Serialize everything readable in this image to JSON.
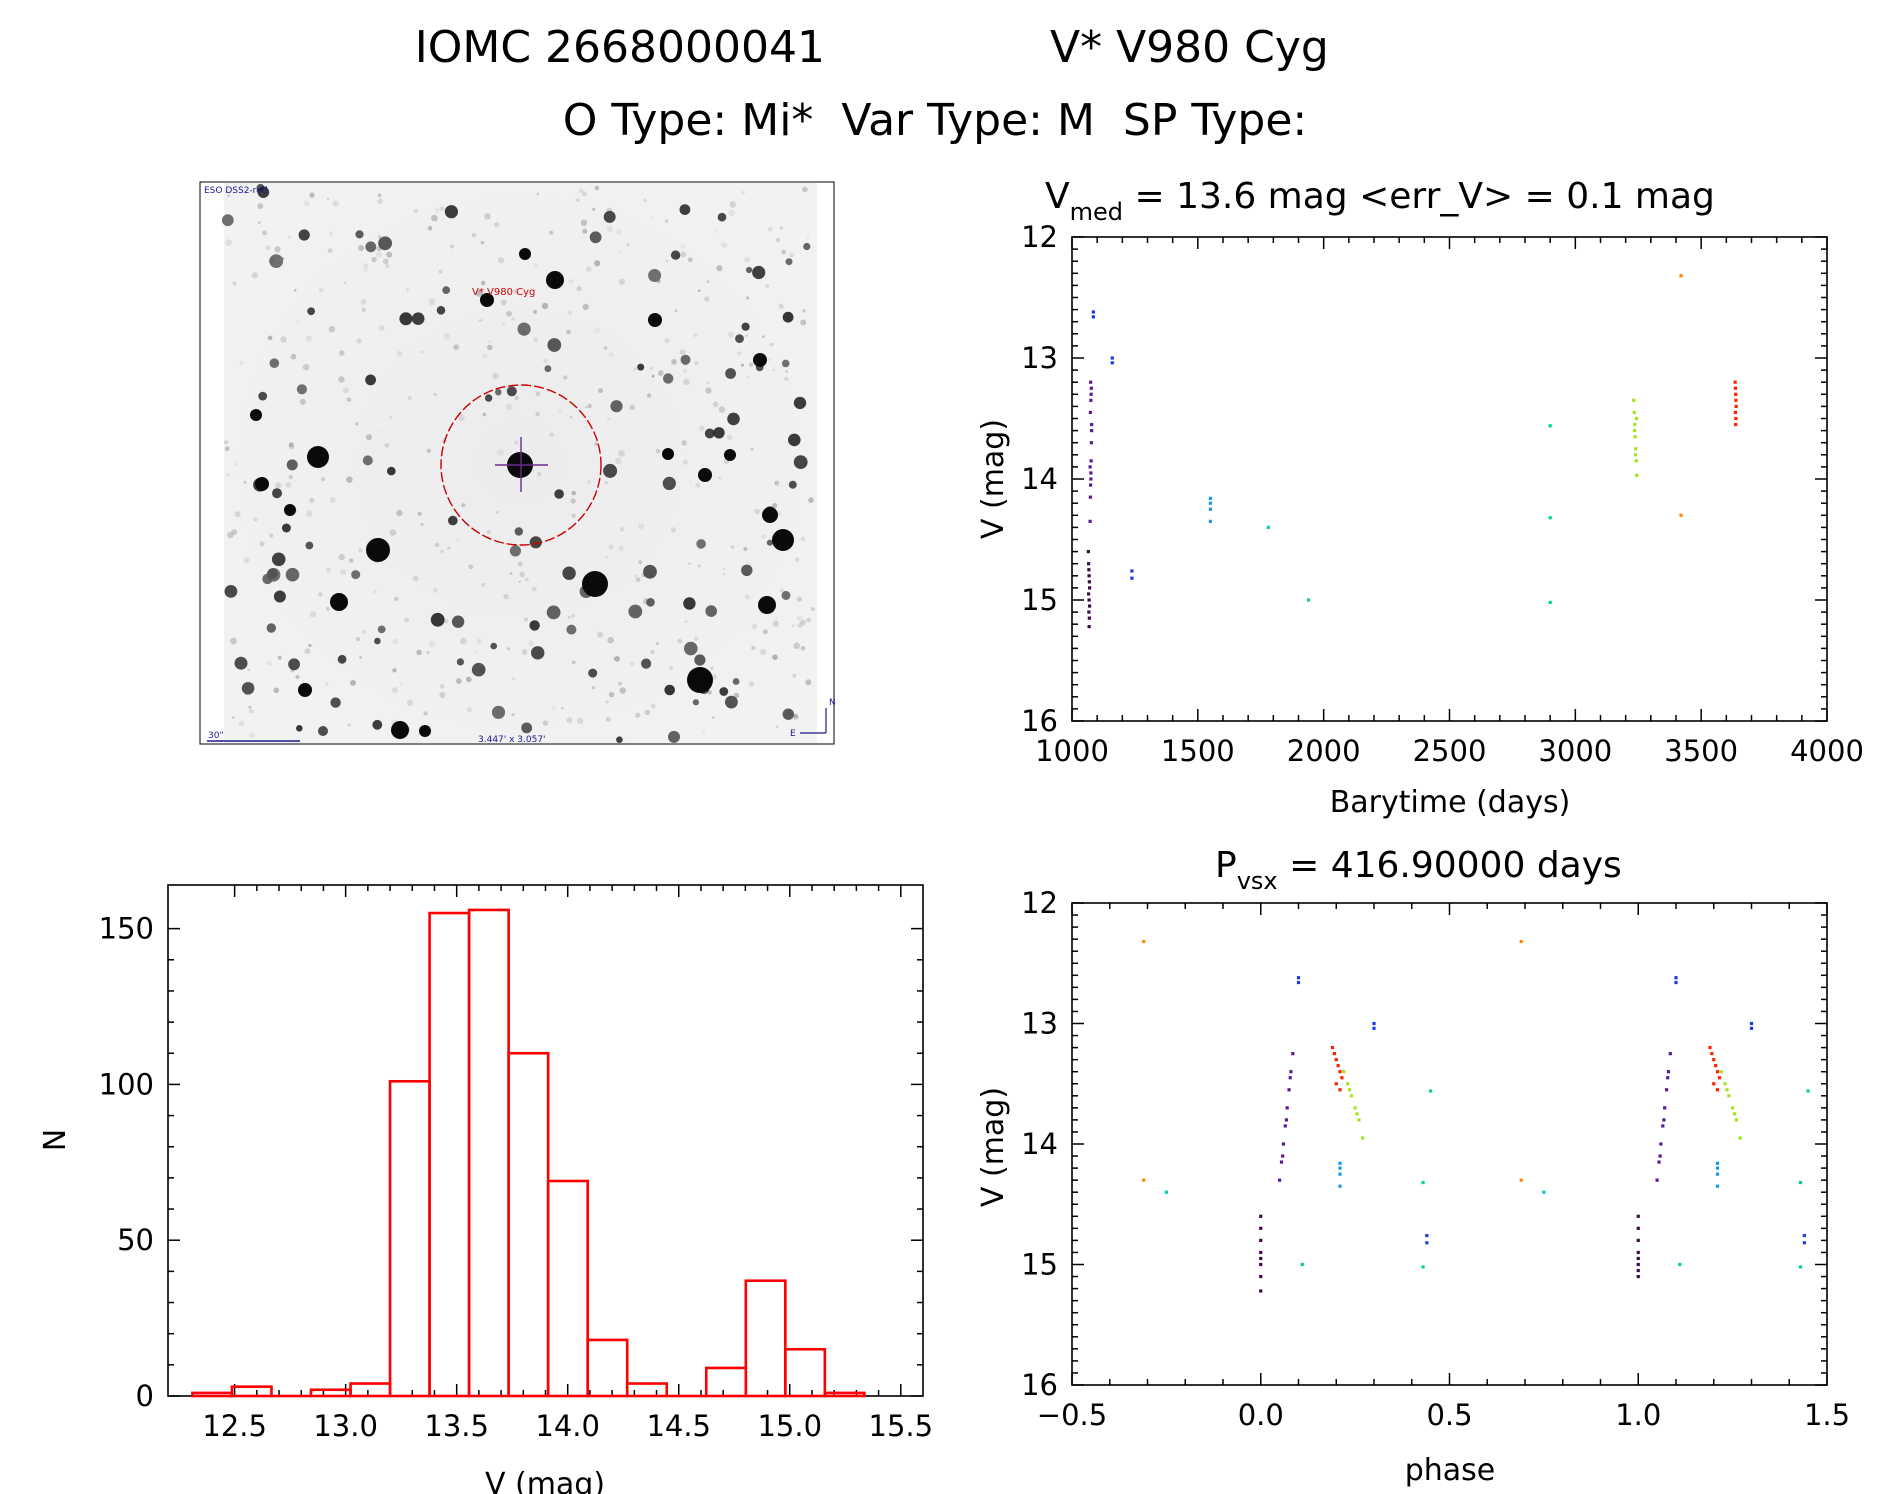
{
  "header": {
    "line1_id": "IOMC 2668000041",
    "line1_name": "V* V980 Cyg",
    "line2": "O Type: Mi*  Var Type: M  SP Type:"
  },
  "finder": {
    "survey_label": "ESO DSS2-red",
    "target_label": "V* V980 Cyg",
    "scale_label": "30\"",
    "fov_label": "3.447' x 3.057'",
    "north_label": "N",
    "east_label": "E"
  },
  "colors": {
    "histogram": "#ff0000",
    "finder_marker": "#cc0000",
    "finder_text": "#1a1a8c"
  },
  "chart_data": [
    {
      "id": "lightcurve",
      "type": "scatter",
      "title_main": "V",
      "title_sub": "med",
      "title_rest": " = 13.6 mag <err_V> = 0.1 mag",
      "xlabel": "Barytime (days)",
      "ylabel": "V (mag)",
      "xlim": [
        1000,
        4000
      ],
      "ylim": [
        16,
        12
      ],
      "x_ticks": [
        "1000",
        "1500",
        "2000",
        "2500",
        "3000",
        "3500",
        "4000"
      ],
      "y_ticks": [
        "12",
        "13",
        "14",
        "15",
        "16"
      ],
      "series": [
        {
          "name": "epoch1-dark",
          "color": "#3d0a4a",
          "x": [
            1065,
            1066,
            1067,
            1068,
            1069,
            1070,
            1066,
            1068,
            1070,
            1067,
            1069,
            1068
          ],
          "y": [
            14.6,
            14.7,
            14.75,
            14.8,
            14.85,
            14.9,
            14.95,
            15.0,
            15.05,
            15.1,
            15.15,
            15.22
          ]
        },
        {
          "name": "epoch1-purple",
          "color": "#5a1a99",
          "x": [
            1072,
            1073,
            1074,
            1075,
            1076,
            1077,
            1078,
            1073,
            1075,
            1077,
            1074,
            1076,
            1072,
            1078,
            1075
          ],
          "y": [
            14.35,
            14.15,
            14.05,
            13.95,
            13.85,
            13.7,
            13.55,
            13.45,
            13.35,
            13.25,
            13.2,
            13.3,
            13.9,
            13.6,
            14.0
          ]
        },
        {
          "name": "blue",
          "color": "#1a3ae6",
          "x": [
            1085,
            1085,
            1160,
            1160,
            1238,
            1238
          ],
          "y": [
            12.62,
            12.66,
            13.0,
            13.04,
            14.76,
            14.82
          ]
        },
        {
          "name": "cyan-blue",
          "color": "#1a99e6",
          "x": [
            1550,
            1550,
            1550,
            1550
          ],
          "y": [
            14.16,
            14.2,
            14.25,
            14.35
          ]
        },
        {
          "name": "cyan",
          "color": "#00ccbb",
          "x": [
            1780
          ],
          "y": [
            14.4
          ]
        },
        {
          "name": "teal",
          "color": "#00d48a",
          "x": [
            1940,
            2900,
            2900,
            2900
          ],
          "y": [
            15.0,
            13.56,
            14.32,
            15.02
          ]
        },
        {
          "name": "green-yellow",
          "color": "#a0e61a",
          "x": [
            3232,
            3234,
            3236,
            3238,
            3240,
            3242,
            3244,
            3235,
            3239,
            3243
          ],
          "y": [
            13.35,
            13.45,
            13.55,
            13.65,
            13.75,
            13.85,
            13.97,
            13.6,
            13.8,
            13.5
          ]
        },
        {
          "name": "orange",
          "color": "#ff8800",
          "x": [
            3420,
            3420
          ],
          "y": [
            12.32,
            14.3
          ]
        },
        {
          "name": "red",
          "color": "#ff2200",
          "x": [
            3635,
            3636,
            3637,
            3638,
            3639,
            3636,
            3638,
            3637
          ],
          "y": [
            13.2,
            13.25,
            13.3,
            13.35,
            13.4,
            13.45,
            13.5,
            13.55
          ]
        }
      ]
    },
    {
      "id": "histogram",
      "type": "bar",
      "xlabel": "V (mag)",
      "ylabel": "N",
      "xlim": [
        12.2,
        15.6
      ],
      "ylim": [
        0,
        164
      ],
      "x_ticks": [
        "12.5",
        "13.0",
        "13.5",
        "14.0",
        "14.5",
        "15.0",
        "15.5"
      ],
      "y_ticks": [
        "0",
        "50",
        "100",
        "150"
      ],
      "bin_width": 0.178,
      "bin_left_edges": [
        12.31,
        12.488,
        12.666,
        12.844,
        13.022,
        13.2,
        13.378,
        13.556,
        13.734,
        13.912,
        14.09,
        14.268,
        14.446,
        14.624,
        14.802,
        14.98,
        15.158
      ],
      "values": [
        1,
        3,
        0,
        2,
        4,
        101,
        155,
        156,
        110,
        69,
        18,
        4,
        0,
        9,
        37,
        15,
        1
      ]
    },
    {
      "id": "phased",
      "type": "scatter",
      "title_main": "P",
      "title_sub": "vsx",
      "title_rest": " = 416.90000 days",
      "xlabel": "phase",
      "ylabel": "V (mag)",
      "xlim": [
        -0.5,
        1.5
      ],
      "ylim": [
        16,
        12
      ],
      "x_ticks": [
        "−0.5",
        "0.0",
        "0.5",
        "1.0",
        "1.5"
      ],
      "y_ticks": [
        "12",
        "13",
        "14",
        "15",
        "16"
      ],
      "series": [
        {
          "name": "dark",
          "color": "#3d0a4a",
          "x": [
            0.0,
            0.0,
            0.0,
            0.0,
            0.0,
            0.0,
            0.0,
            0.0,
            1.0,
            1.0,
            1.0,
            1.0,
            1.0,
            1.0,
            1.0,
            1.0
          ],
          "y": [
            14.6,
            14.7,
            14.8,
            14.9,
            14.95,
            15.0,
            15.1,
            15.22,
            14.6,
            14.7,
            14.8,
            14.9,
            14.95,
            15.0,
            15.05,
            15.1
          ]
        },
        {
          "name": "purple",
          "color": "#5a1a99",
          "x": [
            0.05,
            0.055,
            0.06,
            0.065,
            0.07,
            0.075,
            0.08,
            0.085,
            0.058,
            0.068,
            0.078,
            1.05,
            1.055,
            1.06,
            1.065,
            1.07,
            1.075,
            1.08,
            1.085,
            1.058,
            1.068,
            1.078
          ],
          "y": [
            14.3,
            14.15,
            14.0,
            13.85,
            13.7,
            13.55,
            13.4,
            13.25,
            14.1,
            13.8,
            13.45,
            14.3,
            14.15,
            14.0,
            13.85,
            13.7,
            13.55,
            13.4,
            13.25,
            14.1,
            13.8,
            13.45
          ]
        },
        {
          "name": "blue",
          "color": "#1a3ae6",
          "x": [
            0.1,
            0.1,
            0.3,
            0.3,
            0.44,
            0.44,
            1.1,
            1.1,
            1.3,
            1.3,
            1.44,
            1.44
          ],
          "y": [
            12.62,
            12.66,
            13.0,
            13.04,
            14.76,
            14.82,
            12.62,
            12.66,
            13.0,
            13.04,
            14.76,
            14.82
          ]
        },
        {
          "name": "cyan-blue",
          "color": "#1a99e6",
          "x": [
            0.21,
            0.21,
            0.21,
            0.21,
            1.21,
            1.21,
            1.21,
            1.21
          ],
          "y": [
            14.16,
            14.2,
            14.25,
            14.35,
            14.16,
            14.2,
            14.25,
            14.35
          ]
        },
        {
          "name": "cyan",
          "color": "#00ccbb",
          "x": [
            -0.25,
            0.75
          ],
          "y": [
            14.4,
            14.4
          ]
        },
        {
          "name": "teal",
          "color": "#00d48a",
          "x": [
            0.11,
            0.43,
            0.43,
            0.45,
            1.11,
            1.43,
            1.43,
            1.45
          ],
          "y": [
            15.0,
            14.32,
            15.02,
            13.56,
            15.0,
            14.32,
            15.02,
            13.56
          ]
        },
        {
          "name": "green-yellow",
          "color": "#a0e61a",
          "x": [
            0.22,
            0.23,
            0.24,
            0.25,
            0.26,
            0.27,
            0.235,
            0.255,
            1.22,
            1.23,
            1.24,
            1.25,
            1.26,
            1.27,
            1.235,
            1.255
          ],
          "y": [
            13.4,
            13.5,
            13.6,
            13.7,
            13.8,
            13.95,
            13.55,
            13.75,
            13.4,
            13.5,
            13.6,
            13.7,
            13.8,
            13.95,
            13.55,
            13.75
          ]
        },
        {
          "name": "orange",
          "color": "#ff8800",
          "x": [
            -0.31,
            -0.31,
            0.69,
            0.69
          ],
          "y": [
            12.32,
            14.3,
            12.32,
            14.3
          ]
        },
        {
          "name": "red",
          "color": "#ff2200",
          "x": [
            0.19,
            0.195,
            0.2,
            0.205,
            0.21,
            0.215,
            0.2,
            0.21,
            1.19,
            1.195,
            1.2,
            1.205,
            1.21,
            1.215,
            1.2,
            1.21
          ],
          "y": [
            13.2,
            13.25,
            13.3,
            13.35,
            13.4,
            13.45,
            13.5,
            13.55,
            13.2,
            13.25,
            13.3,
            13.35,
            13.4,
            13.45,
            13.5,
            13.55
          ]
        }
      ]
    }
  ]
}
